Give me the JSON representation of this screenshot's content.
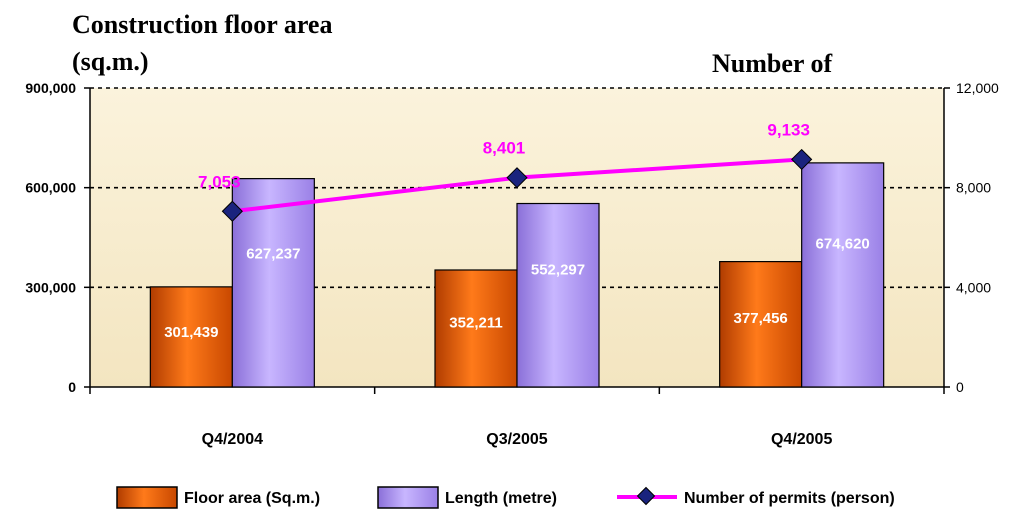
{
  "chart_data": {
    "type": "bar",
    "title_left_line1": "Construction floor area",
    "title_left_line2": "(sq.m.)",
    "title_right": "Number of",
    "categories": [
      "Q4/2004",
      "Q3/2005",
      "Q4/2005"
    ],
    "y_left": {
      "ylim": [
        0,
        900000
      ],
      "ticks": [
        0,
        300000,
        600000,
        900000
      ],
      "tick_labels": [
        "0",
        "300,000",
        "600,000",
        "900,000"
      ]
    },
    "y_right": {
      "ylim": [
        0,
        12000
      ],
      "ticks": [
        0,
        4000,
        8000,
        12000
      ],
      "tick_labels": [
        "0",
        "4,000",
        "8,000",
        "12,000"
      ]
    },
    "grid": "dashed horizontal at left-axis ticks",
    "series": [
      {
        "name": "Floor area (Sq.m.)",
        "kind": "bar",
        "axis": "left",
        "color": "#e06010",
        "values": [
          301439,
          352211,
          377456
        ],
        "labels": [
          "301,439",
          "352,211",
          "377,456"
        ]
      },
      {
        "name": "Length (metre)",
        "kind": "bar",
        "axis": "left",
        "color": "#a98ee8",
        "values": [
          627237,
          552297,
          674620
        ],
        "labels": [
          "627,237",
          "552,297",
          "674,620"
        ]
      },
      {
        "name": "Number of permits (person)",
        "kind": "line",
        "axis": "right",
        "color": "#ff00ff",
        "marker_color": "#1a237e",
        "values": [
          7053,
          8401,
          9133
        ],
        "labels": [
          "7,053",
          "8,401",
          "9,133"
        ]
      }
    ],
    "legend_position": "bottom",
    "plot_background": "#f8efd6"
  }
}
